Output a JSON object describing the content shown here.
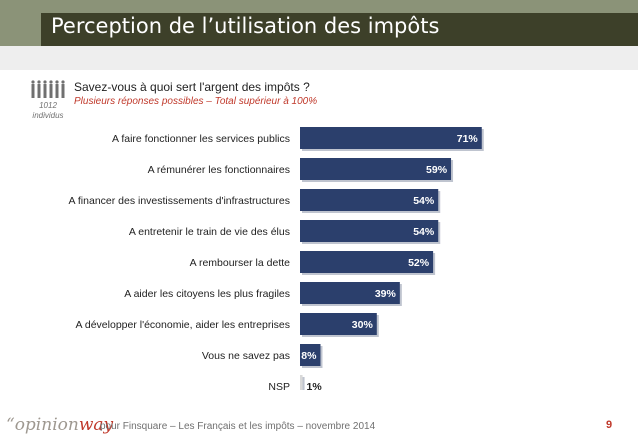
{
  "header": {
    "title": "Perception de l’utilisation des impôts"
  },
  "sample": {
    "count": "1012",
    "unit": "individus"
  },
  "question": {
    "text": "Savez-vous à quoi sert l'argent des impôts ?",
    "note": "Plusieurs réponses possibles – Total supérieur à 100%"
  },
  "chart_data": {
    "type": "bar",
    "orientation": "horizontal",
    "categories": [
      "A faire fonctionner les services publics",
      "A rémunérer les fonctionnaires",
      "A financer des investissements d'infrastructures",
      "A entretenir le train de vie des élus",
      "A rembourser la dette",
      "A aider les citoyens les plus fragiles",
      "A développer l'économie, aider les entreprises",
      "Vous ne savez pas",
      "NSP"
    ],
    "values": [
      71,
      59,
      54,
      54,
      52,
      39,
      30,
      8,
      1
    ],
    "value_labels": [
      "71%",
      "59%",
      "54%",
      "54%",
      "52%",
      "39%",
      "30%",
      "8%",
      "1%"
    ],
    "unit": "%",
    "bar_colors": [
      "#2b3f6c",
      "#2b3f6c",
      "#2b3f6c",
      "#2b3f6c",
      "#2b3f6c",
      "#2b3f6c",
      "#2b3f6c",
      "#2b3f6c",
      "#d9d9d9"
    ],
    "label_color": "#ffffff",
    "outside_label_color": "#222222",
    "grid": false,
    "legend": "none"
  },
  "footer": {
    "logo_main": "“opinion",
    "logo_accent": "way",
    "text": "pour Finsquare – Les Français et les impôts – novembre 2014",
    "page": "9"
  }
}
